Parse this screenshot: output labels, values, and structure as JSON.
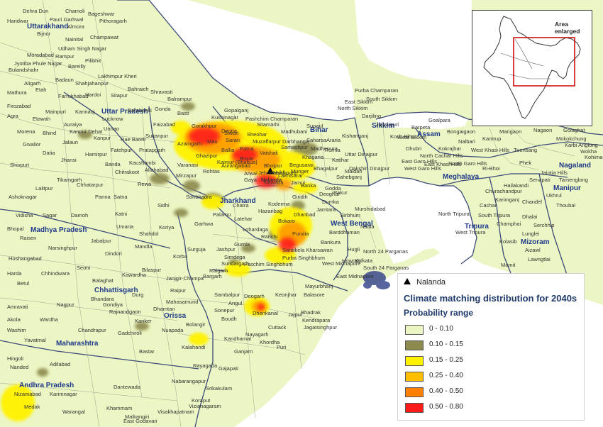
{
  "map": {
    "marker_label": "Nalanda",
    "legend_title": "Climate matching distribution for 2040s",
    "legend_subtitle": "Probability range",
    "classes": [
      {
        "label": "0 - 0.10",
        "color": "#ecf6c4"
      },
      {
        "label": "0.10 - 0.15",
        "color": "#8c8a4e"
      },
      {
        "label": "0.15 - 0.25",
        "color": "#fff200"
      },
      {
        "label": "0.25 - 0.40",
        "color": "#ffbf00"
      },
      {
        "label": "0.40 - 0.50",
        "color": "#ff7f00"
      },
      {
        "label": "0.50 - 0.80",
        "color": "#ff1a1a"
      }
    ],
    "inset_label": "Area enlarged",
    "states": [
      "Uttarakhand",
      "Uttar Pradesh",
      "Bihar",
      "Sikkim",
      "Assam",
      "Nagaland",
      "Manipur",
      "Meghalaya",
      "Tripura",
      "Mizoram",
      "Jharkhand",
      "West Bengal",
      "Madhya Pradesh",
      "Chhattisgarh",
      "Orissa",
      "Maharashtra",
      "Andhra Pradesh"
    ],
    "districts": [
      "Dehra Dun",
      "Chamoli",
      "Bageshwar",
      "Haridwar",
      "Pauri Garhwal",
      "Almora",
      "Pithoragarh",
      "Nainital",
      "Champawat",
      "Bijnor",
      "Udham Singh Nagar",
      "Moradabad",
      "Rampur",
      "Jyotiba Phule Nagar",
      "Bulandshahr",
      "Bareilly",
      "Pilibhit",
      "Badaun",
      "Shahjahanpur",
      "Lakhimpur Kheri",
      "Aligarh",
      "Etah",
      "Mathura",
      "Farrukhabad",
      "Hardoi",
      "Sitapur",
      "Bahraich",
      "Shravasti",
      "Firozabad",
      "Kannauj",
      "Lucknow",
      "Barabanki",
      "Gonda",
      "Balrampur",
      "Agra",
      "Etawah",
      "Mainpuri",
      "Auraiya",
      "Kanpur Dehat",
      "Kanpur",
      "Unnao",
      "Rae Bareli",
      "Faizabad",
      "Basti",
      "Gorakhpur",
      "Kushinagar",
      "Deoria",
      "Bhind",
      "Morena",
      "Jalaun",
      "Gwalior",
      "Datia",
      "Jhansi",
      "Hamirpur",
      "Fatehpur",
      "Pratapgarh",
      "Sultanpur",
      "Azamgarh",
      "Mau",
      "Ballia",
      "Ghazipur",
      "Varanasi",
      "Allahabad",
      "Kaushambi",
      "Banda",
      "Chitrakoot",
      "Mirzapur",
      "Sonbhadra",
      "Shivpuri",
      "Lalitpur",
      "Tikamgarh",
      "Chhatarpur",
      "Panna",
      "Satna",
      "Rewa",
      "Sidhi",
      "Ashoknagar",
      "Vidisha",
      "Sagar",
      "Damoh",
      "Katni",
      "Umaria",
      "Shahdol",
      "Bhopal",
      "Raisen",
      "Narsinghpur",
      "Jabalpur",
      "Mandla",
      "Dindori",
      "Hoshangabad",
      "Seoni",
      "Chhindwara",
      "Betul",
      "Harda",
      "Balaghat",
      "Gondiya",
      "Bhandara",
      "Nagpur",
      "Wardha",
      "Amravati",
      "Akola",
      "Washim",
      "Yavatmal",
      "Chandrapur",
      "Gadchiroli",
      "Hingoli",
      "Nanded",
      "Adilabad",
      "Nizamabad",
      "Karimnagar",
      "Warangal",
      "Khammam",
      "Medak",
      "Korba",
      "Bilaspur",
      "Raigarh",
      "Janjgir-Champa",
      "Jashpur",
      "Surguja",
      "Koriya",
      "Raipur",
      "Durg",
      "Kawardha",
      "Rajnandgaon",
      "Mahasamund",
      "Dhamtari",
      "Kanker",
      "Bastar",
      "Dantewada",
      "Nuapada",
      "Bargarh",
      "Sambalpur",
      "Sundargarh",
      "Deogarh",
      "Keonjhar",
      "Mayurbhanj",
      "Balasore",
      "Bhadrak",
      "Jajpur",
      "Kendrapara",
      "Cuttack",
      "Dhenkanal",
      "Angul",
      "Boudh",
      "Sonepur",
      "Bolangir",
      "Kalahandi",
      "Nabarangapur",
      "Koraput",
      "Rayagada",
      "Gajapati",
      "Ganjam",
      "Kandhamal",
      "Nayagarh",
      "Khordha",
      "Puri",
      "Jagatsinghpur",
      "Malkangiri",
      "Srikakulam",
      "Vizianagaram",
      "Visakhapatnam",
      "East Godavari",
      "Ranchi",
      "Gumla",
      "Lohardaga",
      "Latehar",
      "Palamu",
      "Garhwa",
      "Chatra",
      "Hazaribag",
      "Koderma",
      "Giridih",
      "Deoghar",
      "Dumka",
      "Godda",
      "Sahebganj",
      "Pakur",
      "Jamtara",
      "Dhanbad",
      "Bokaro",
      "Purulia",
      "Bankura",
      "Saraikela Kharsawan",
      "Purba Singhbhum",
      "Paschim Singhbhum",
      "Simdega",
      "West Midnapore",
      "East Midnapore",
      "North 24 Parganas",
      "South 24 Parganas",
      "Kolkata",
      "Howrah",
      "Hugli",
      "Barddhaman",
      "Birbhum",
      "Nadia",
      "Murshidabad",
      "Maldah",
      "Uttar Dinajpur",
      "Dakshin Dinajpur",
      "Darjiling",
      "Jalpaiguri",
      "Koch Bihar",
      "Kishanganj",
      "Katihar",
      "Purnia",
      "Araria",
      "Supaul",
      "Madhubani",
      "Sitamarhi",
      "Sheohar",
      "Muzaffarpur",
      "Vaishali",
      "Samastipur",
      "Darbhanga",
      "Saharsa",
      "Madhepura",
      "Khagaria",
      "Begusarai",
      "Munger",
      "Bhagalpur",
      "Banka",
      "Jamui",
      "Lakhisarai",
      "Sheikhpura",
      "Nawada",
      "Gaya",
      "Jehanabad",
      "Arwal",
      "Aurangabad",
      "Rohtas",
      "Kaimur (Bhabua)",
      "Buxar",
      "Bhojpur",
      "Patna",
      "Saran",
      "Siwan",
      "Gopalganj",
      "Pashchim Champaran",
      "Purba Champaran",
      "North Sikkim",
      "South Sikkim",
      "East Sikkim",
      "West Sikkim",
      "Dhubri",
      "Goalpara",
      "Bongaigaon",
      "Barpeta",
      "Kokrajhar",
      "Nalbari",
      "Kamrup",
      "Marigaon",
      "Nagaon",
      "Golaghat",
      "Mokokchung",
      "Wokha",
      "Tuensang",
      "Karbi Anglong",
      "Kohima",
      "Phek",
      "North Cachar Hills",
      "East Garo Hills",
      "West Garo Hills",
      "South Garo Hills",
      "East Khasi Hills",
      "West Khasi Hills",
      "Ri-Bhoi",
      "Jaintia Hills",
      "Senapati",
      "Tamenglong",
      "Ukhrul",
      "Thoubal",
      "Chandel",
      "Churachandpur",
      "Karimganj",
      "Hailakandi",
      "Cachar",
      "North Tripura",
      "West Tripura",
      "South Tripura",
      "Dhalai",
      "Aizawl",
      "Lunglei",
      "Serchhip",
      "Champhai",
      "Kolasib",
      "Mamit",
      "Lawngtlai",
      "Saiha"
    ]
  }
}
